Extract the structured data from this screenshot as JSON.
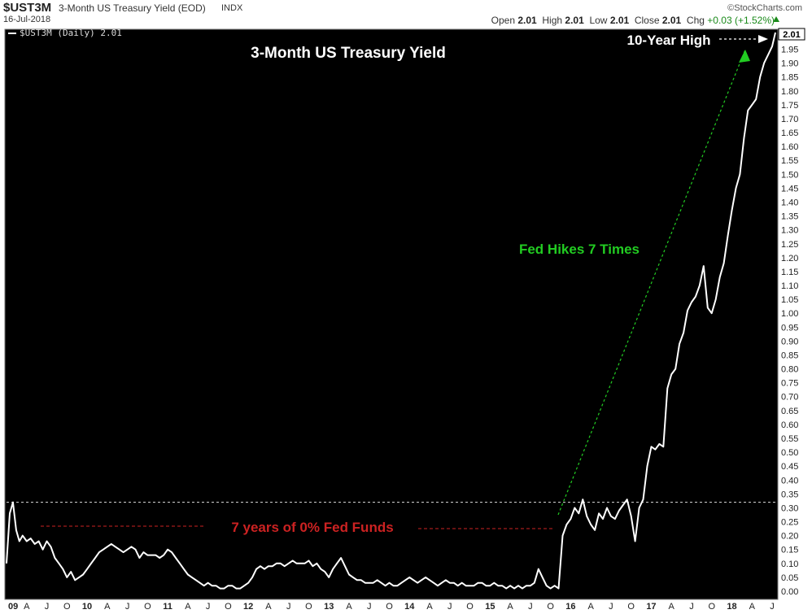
{
  "header": {
    "symbol": "$UST3M",
    "description": "3-Month US Treasury Yield (EOD)",
    "exchange": "INDX",
    "date": "16-Jul-2018",
    "brand": "©StockCharts.com",
    "open_label": "Open",
    "open": "2.01",
    "high_label": "High",
    "high": "2.01",
    "low_label": "Low",
    "low": "2.01",
    "close_label": "Close",
    "close": "2.01",
    "chg_label": "Chg",
    "chg": "+0.03 (+1.52%)"
  },
  "legend": "$UST3M (Daily) 2.01",
  "colors": {
    "background": "#000000",
    "price": "#ffffff",
    "annotation_green": "#22cc22",
    "annotation_red": "#cc2222",
    "current_badge": "#ffffff"
  },
  "chart_data": {
    "type": "line",
    "title": "3-Month US Treasury Yield",
    "xlabel": "",
    "ylabel": "",
    "ylim": [
      0,
      2.01
    ],
    "y_ticks": [
      "2.01",
      "1.95",
      "1.90",
      "1.85",
      "1.80",
      "1.75",
      "1.70",
      "1.65",
      "1.60",
      "1.55",
      "1.50",
      "1.45",
      "1.40",
      "1.35",
      "1.30",
      "1.25",
      "1.20",
      "1.15",
      "1.10",
      "1.05",
      "1.00",
      "0.95",
      "0.90",
      "0.85",
      "0.80",
      "0.75",
      "0.70",
      "0.65",
      "0.60",
      "0.55",
      "0.50",
      "0.45",
      "0.40",
      "0.35",
      "0.30",
      "0.25",
      "0.20",
      "0.15",
      "0.10",
      "0.05",
      "0.00"
    ],
    "x_ticks": [
      "09",
      "A",
      "J",
      "O",
      "10",
      "A",
      "J",
      "O",
      "11",
      "A",
      "J",
      "O",
      "12",
      "A",
      "J",
      "O",
      "13",
      "A",
      "J",
      "O",
      "14",
      "A",
      "J",
      "O",
      "15",
      "A",
      "J",
      "O",
      "16",
      "A",
      "J",
      "O",
      "17",
      "A",
      "J",
      "O",
      "18",
      "A",
      "J"
    ],
    "series": [
      {
        "x": [
          2009.0,
          2009.04,
          2009.08,
          2009.12,
          2009.16,
          2009.2,
          2009.25,
          2009.3,
          2009.35,
          2009.4,
          2009.45,
          2009.5,
          2009.55,
          2009.6,
          2009.65,
          2009.7,
          2009.75,
          2009.8,
          2009.85,
          2009.9,
          2009.95,
          2010.0,
          2010.05,
          2010.1,
          2010.15,
          2010.2,
          2010.25,
          2010.3,
          2010.35,
          2010.4,
          2010.45,
          2010.5,
          2010.55,
          2010.6,
          2010.65,
          2010.7,
          2010.75,
          2010.8,
          2010.85,
          2010.9,
          2010.95,
          2011.0,
          2011.05,
          2011.1,
          2011.15,
          2011.2,
          2011.25,
          2011.3,
          2011.35,
          2011.4,
          2011.45,
          2011.5,
          2011.55,
          2011.6,
          2011.65,
          2011.7,
          2011.75,
          2011.8,
          2011.85,
          2011.9,
          2011.95,
          2012.0,
          2012.05,
          2012.1,
          2012.15,
          2012.2,
          2012.25,
          2012.3,
          2012.35,
          2012.4,
          2012.45,
          2012.5,
          2012.55,
          2012.6,
          2012.65,
          2012.7,
          2012.75,
          2012.8,
          2012.85,
          2012.9,
          2012.95,
          2013.0,
          2013.05,
          2013.1,
          2013.15,
          2013.2,
          2013.25,
          2013.3,
          2013.35,
          2013.4,
          2013.45,
          2013.5,
          2013.55,
          2013.6,
          2013.65,
          2013.7,
          2013.75,
          2013.8,
          2013.85,
          2013.9,
          2013.95,
          2014.0,
          2014.05,
          2014.1,
          2014.15,
          2014.2,
          2014.25,
          2014.3,
          2014.35,
          2014.4,
          2014.45,
          2014.5,
          2014.55,
          2014.6,
          2014.65,
          2014.7,
          2014.75,
          2014.8,
          2014.85,
          2014.9,
          2014.95,
          2015.0,
          2015.05,
          2015.1,
          2015.15,
          2015.2,
          2015.25,
          2015.3,
          2015.35,
          2015.4,
          2015.45,
          2015.5,
          2015.55,
          2015.6,
          2015.65,
          2015.7,
          2015.75,
          2015.8,
          2015.85,
          2015.9,
          2015.95,
          2016.0,
          2016.05,
          2016.1,
          2016.15,
          2016.2,
          2016.25,
          2016.3,
          2016.35,
          2016.4,
          2016.45,
          2016.5,
          2016.55,
          2016.6,
          2016.65,
          2016.7,
          2016.75,
          2016.8,
          2016.85,
          2016.9,
          2016.95,
          2017.0,
          2017.05,
          2017.1,
          2017.15,
          2017.2,
          2017.25,
          2017.3,
          2017.35,
          2017.4,
          2017.45,
          2017.5,
          2017.55,
          2017.6,
          2017.65,
          2017.7,
          2017.75,
          2017.8,
          2017.85,
          2017.9,
          2017.95,
          2018.0,
          2018.05,
          2018.1,
          2018.15,
          2018.2,
          2018.25,
          2018.3,
          2018.35,
          2018.4,
          2018.45,
          2018.5,
          2018.54
        ],
        "values": [
          0.1,
          0.28,
          0.32,
          0.22,
          0.18,
          0.2,
          0.18,
          0.19,
          0.17,
          0.18,
          0.15,
          0.18,
          0.16,
          0.12,
          0.1,
          0.08,
          0.05,
          0.07,
          0.04,
          0.05,
          0.06,
          0.08,
          0.1,
          0.12,
          0.14,
          0.15,
          0.16,
          0.17,
          0.16,
          0.15,
          0.14,
          0.15,
          0.16,
          0.15,
          0.12,
          0.14,
          0.13,
          0.13,
          0.13,
          0.12,
          0.13,
          0.15,
          0.14,
          0.12,
          0.1,
          0.08,
          0.06,
          0.05,
          0.04,
          0.03,
          0.02,
          0.03,
          0.02,
          0.02,
          0.01,
          0.01,
          0.02,
          0.02,
          0.01,
          0.01,
          0.02,
          0.03,
          0.05,
          0.08,
          0.09,
          0.08,
          0.09,
          0.09,
          0.1,
          0.1,
          0.09,
          0.1,
          0.11,
          0.1,
          0.1,
          0.1,
          0.11,
          0.09,
          0.1,
          0.08,
          0.07,
          0.05,
          0.08,
          0.1,
          0.12,
          0.09,
          0.06,
          0.05,
          0.04,
          0.04,
          0.03,
          0.03,
          0.03,
          0.04,
          0.03,
          0.02,
          0.03,
          0.02,
          0.02,
          0.03,
          0.04,
          0.05,
          0.04,
          0.03,
          0.04,
          0.05,
          0.04,
          0.03,
          0.02,
          0.03,
          0.04,
          0.03,
          0.03,
          0.02,
          0.03,
          0.02,
          0.02,
          0.02,
          0.03,
          0.03,
          0.02,
          0.02,
          0.03,
          0.02,
          0.02,
          0.01,
          0.02,
          0.01,
          0.02,
          0.01,
          0.02,
          0.02,
          0.03,
          0.08,
          0.05,
          0.02,
          0.01,
          0.02,
          0.01,
          0.2,
          0.24,
          0.26,
          0.3,
          0.28,
          0.33,
          0.27,
          0.24,
          0.22,
          0.28,
          0.26,
          0.3,
          0.27,
          0.26,
          0.29,
          0.31,
          0.33,
          0.27,
          0.18,
          0.3,
          0.33,
          0.45,
          0.52,
          0.51,
          0.53,
          0.52,
          0.73,
          0.78,
          0.8,
          0.89,
          0.93,
          1.01,
          1.04,
          1.06,
          1.1,
          1.17,
          1.02,
          1.0,
          1.05,
          1.13,
          1.18,
          1.28,
          1.37,
          1.45,
          1.5,
          1.63,
          1.73,
          1.75,
          1.77,
          1.85,
          1.9,
          1.93,
          1.96,
          2.01
        ]
      }
    ],
    "annotations": [
      {
        "text": "Fed Hikes 7 Times",
        "color": "#22cc22"
      },
      {
        "text": "7 years of 0% Fed Funds",
        "color": "#cc2222"
      },
      {
        "text": "10-Year High",
        "color": "#ffffff"
      }
    ],
    "reference_line": 0.32,
    "current_value": "2.01",
    "grid": false,
    "legend_position": "top-left"
  }
}
